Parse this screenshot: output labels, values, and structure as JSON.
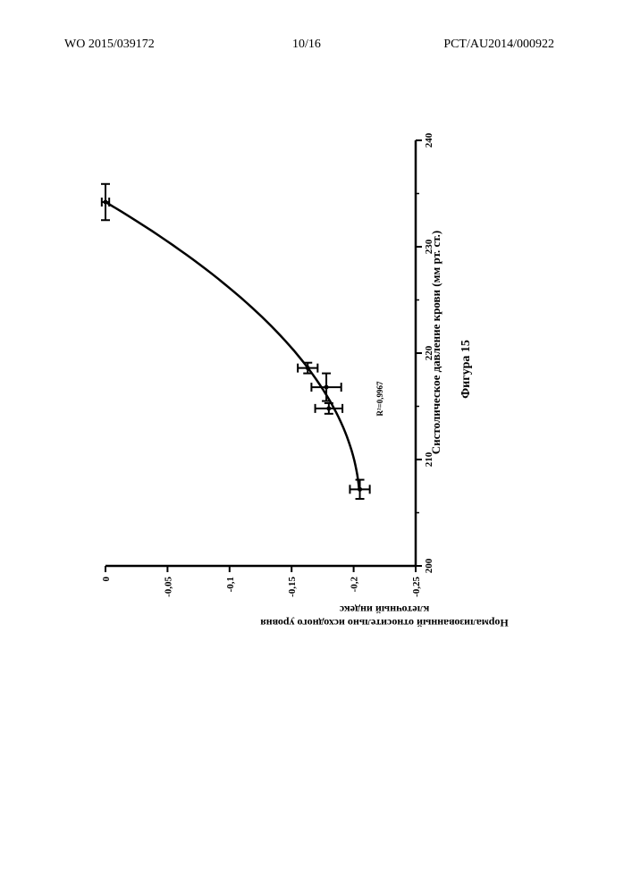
{
  "header": {
    "left": "WO 2015/039172",
    "center": "10/16",
    "right": "PCT/AU2014/000922"
  },
  "figure": {
    "caption": "Фигура 15",
    "r2_label": "R²=0,9967"
  },
  "chart_data": {
    "type": "scatter",
    "title": "",
    "xlabel": "Систолическое давление крови (мм рт. ст.)",
    "ylabel": "Нормализованный относительно исходного уровня клеточный индекс",
    "xlim": [
      200,
      240
    ],
    "ylim": [
      -0.25,
      0
    ],
    "x_ticks": [
      "200",
      "210",
      "220",
      "230",
      "240"
    ],
    "y_ticks": [
      "0",
      "-0,05",
      "-0,1",
      "-0,15",
      "-0,2",
      "-0,25"
    ],
    "orientation": "rotated 90 degrees counter-clockwise on page",
    "fit": "second-order polynomial trend line",
    "r2": 0.9967,
    "points": [
      {
        "x": 207.2,
        "y": -0.205,
        "x_err": 0.9,
        "y_err": 0.008
      },
      {
        "x": 214.8,
        "y": -0.18,
        "x_err": 0.5,
        "y_err": 0.011
      },
      {
        "x": 216.8,
        "y": -0.178,
        "x_err": 1.3,
        "y_err": 0.012
      },
      {
        "x": 218.6,
        "y": -0.163,
        "x_err": 0.5,
        "y_err": 0.008
      },
      {
        "x": 234.2,
        "y": 0.0,
        "x_err": 1.7,
        "y_err": 0.003
      }
    ]
  }
}
